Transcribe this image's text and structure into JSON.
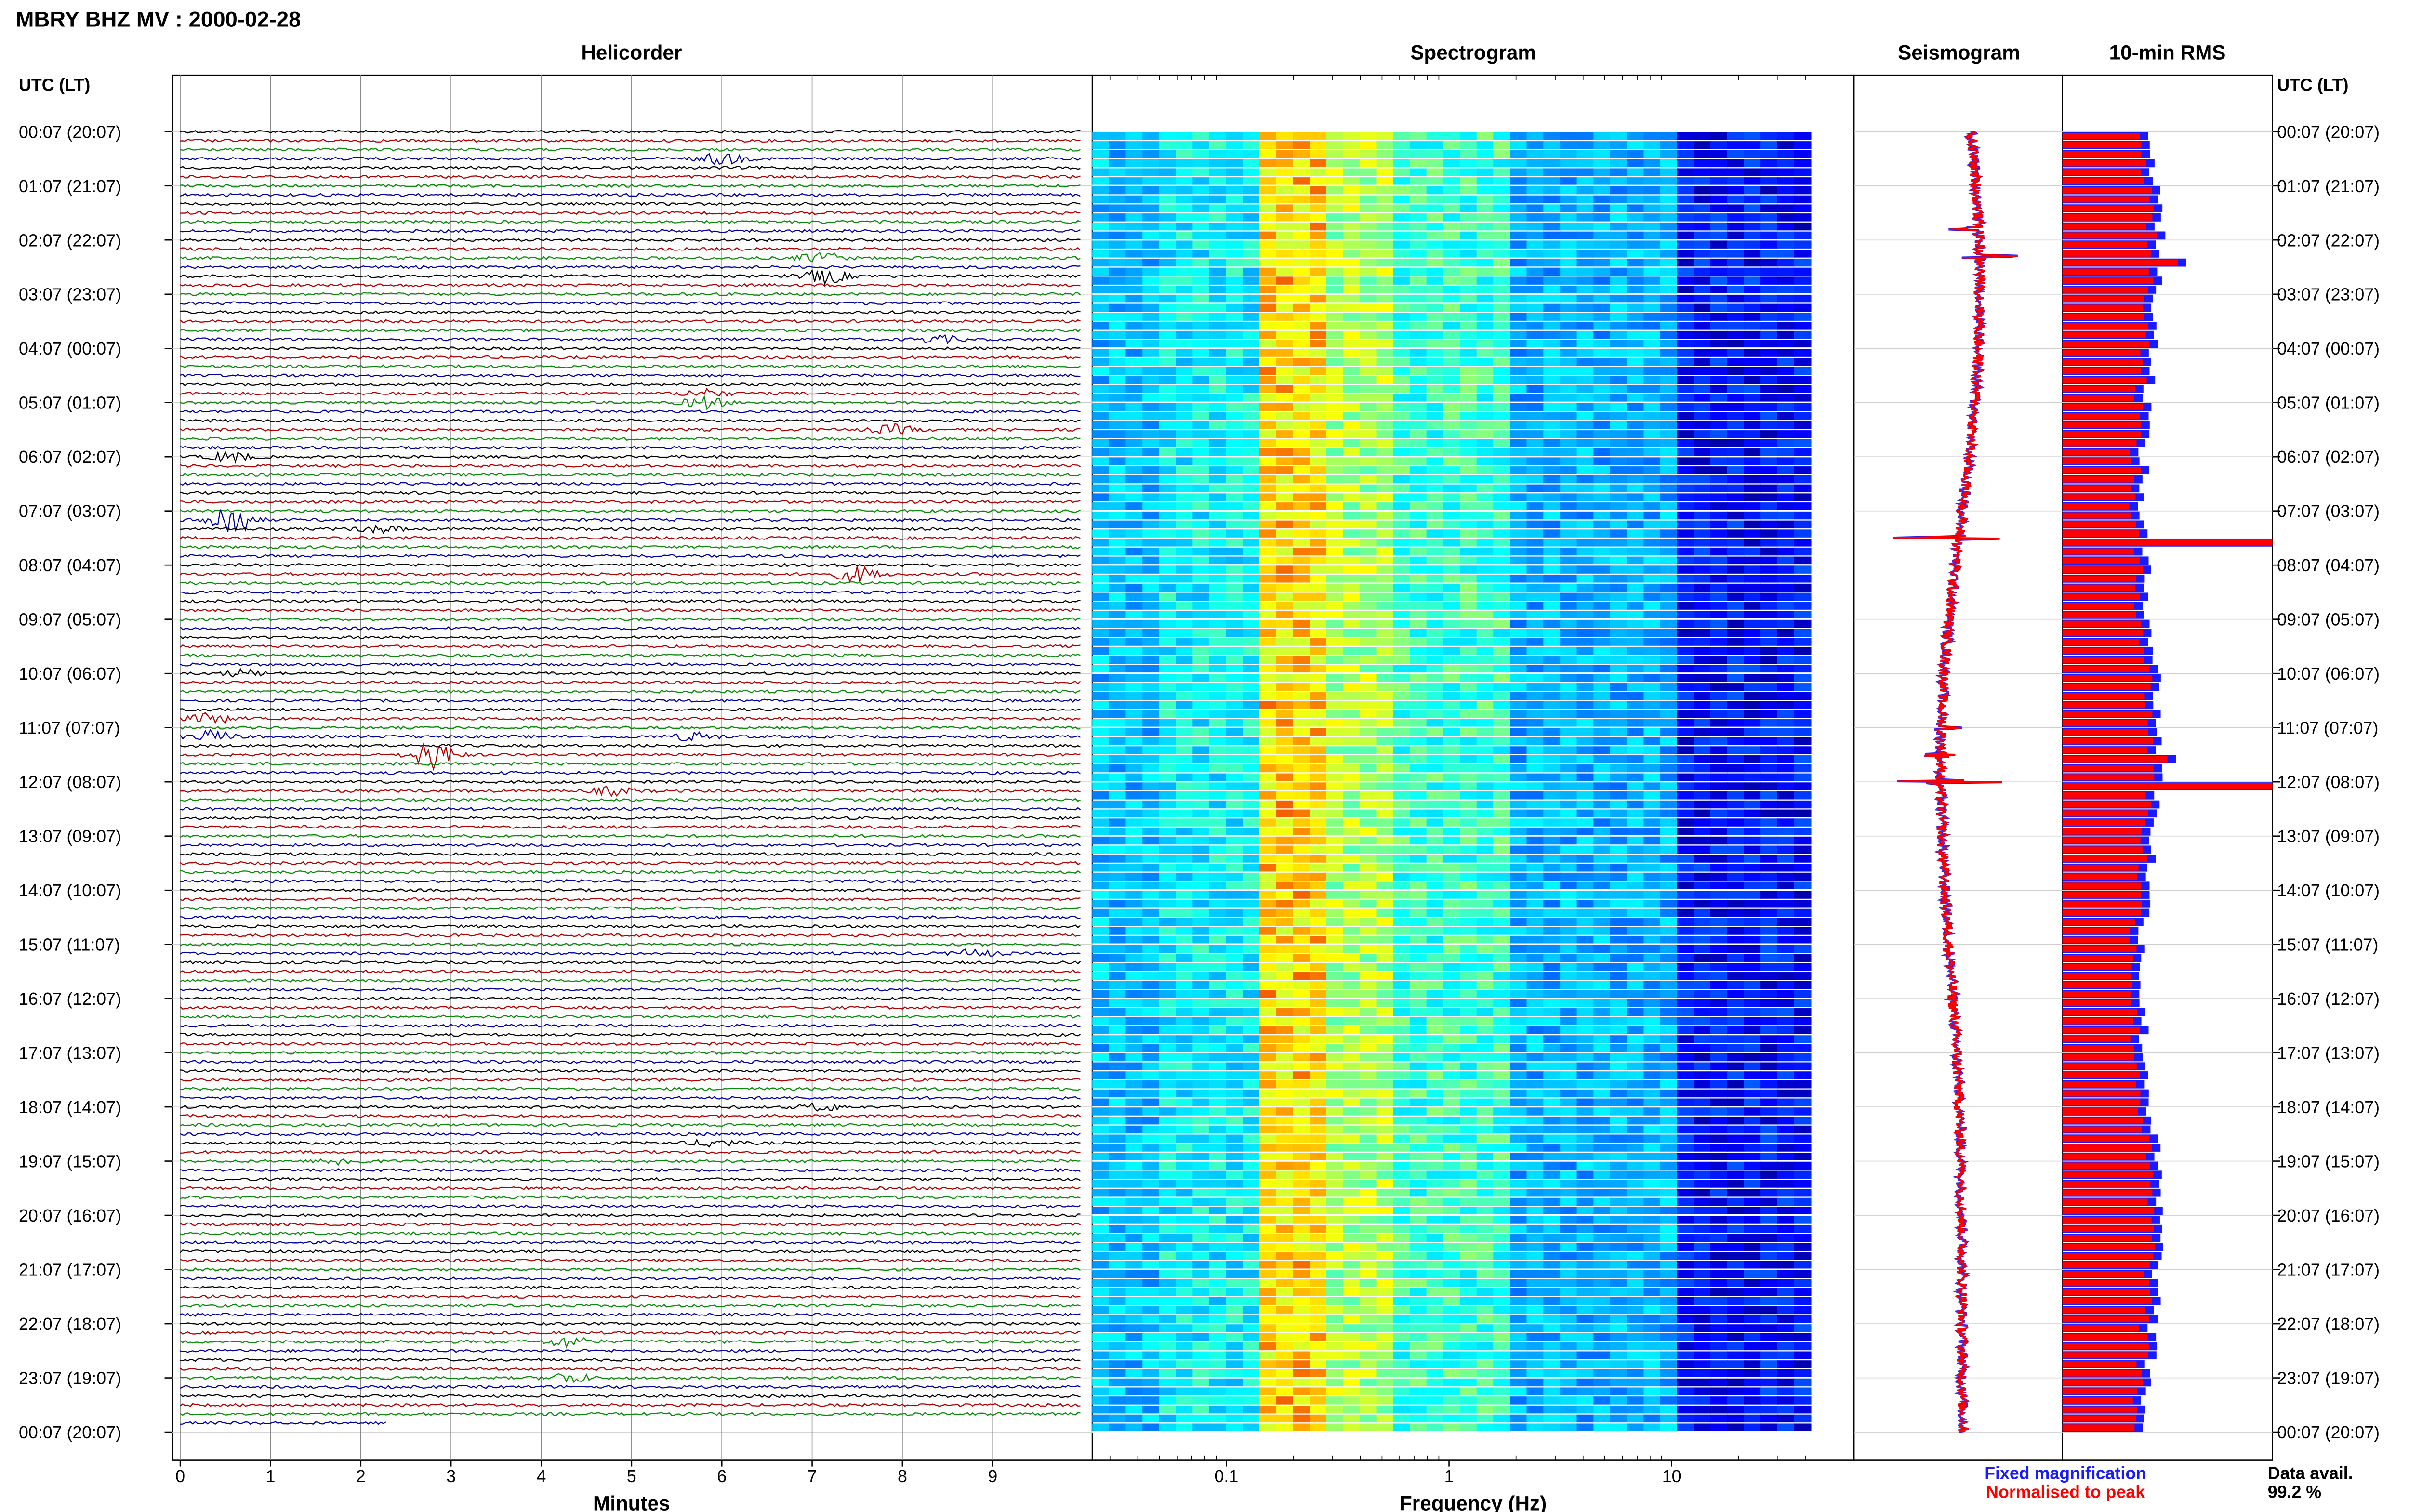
{
  "header": {
    "title": "MBRY BHZ MV : 2000-02-28"
  },
  "panels": {
    "helicorder": "Helicorder",
    "spectrogram": "Spectrogram",
    "seismogram": "Seismogram",
    "rms": "10-min RMS"
  },
  "axes": {
    "left_label": "UTC (LT)",
    "right_label": "UTC (LT)",
    "helicorder_xlabel": "Minutes",
    "spectrogram_xlabel": "Frequency (Hz)"
  },
  "legend": {
    "fixed": "Fixed magnification",
    "fixed_color": "#1a1aff",
    "normalised": "Normalised to peak",
    "normalised_color": "#ff0000"
  },
  "availability": {
    "label": "Data avail.",
    "value": "99.2 %"
  },
  "colors": {
    "trace_cycle": [
      "#000000",
      "#b00000",
      "#0a8a0a",
      "#0000a0"
    ],
    "rms_fixed": "#1a1aff",
    "rms_norm": "#ff0000"
  },
  "chart_data": [
    {
      "type": "line",
      "title": "Helicorder",
      "xlabel": "Minutes",
      "x_ticks": [
        0,
        1,
        2,
        3,
        4,
        5,
        6,
        7,
        8,
        9
      ],
      "xlim": [
        0,
        10
      ],
      "time_labels": [
        "00:07 (20:07)",
        "01:07 (21:07)",
        "02:07 (22:07)",
        "03:07 (23:07)",
        "04:07 (00:07)",
        "05:07 (01:07)",
        "06:07 (02:07)",
        "07:07 (03:07)",
        "08:07 (04:07)",
        "09:07 (05:07)",
        "10:07 (06:07)",
        "11:07 (07:07)",
        "12:07 (08:07)",
        "13:07 (09:07)",
        "14:07 (10:07)",
        "15:07 (11:07)",
        "16:07 (12:07)",
        "17:07 (13:07)",
        "18:07 (14:07)",
        "19:07 (15:07)",
        "20:07 (16:07)",
        "21:07 (17:07)",
        "22:07 (18:07)",
        "23:07 (19:07)",
        "00:07 (20:07)"
      ],
      "traces_per_hour": 6,
      "events": [
        {
          "row": 3,
          "minute": 6.0,
          "amp": 2.2
        },
        {
          "row": 14,
          "minute": 7.1,
          "amp": 2.2
        },
        {
          "row": 16,
          "minute": 7.15,
          "amp": 2.8
        },
        {
          "row": 23,
          "minute": 8.4,
          "amp": 1.4
        },
        {
          "row": 29,
          "minute": 5.8,
          "amp": 1.6
        },
        {
          "row": 30,
          "minute": 5.8,
          "amp": 2.2
        },
        {
          "row": 33,
          "minute": 7.9,
          "amp": 1.8
        },
        {
          "row": 36,
          "minute": 0.55,
          "amp": 2.0
        },
        {
          "row": 43,
          "minute": 0.55,
          "amp": 7.0
        },
        {
          "row": 44,
          "minute": 2.2,
          "amp": 1.3
        },
        {
          "row": 49,
          "minute": 7.5,
          "amp": 3.0
        },
        {
          "row": 60,
          "minute": 0.7,
          "amp": 1.4
        },
        {
          "row": 65,
          "minute": 0.35,
          "amp": 2.0
        },
        {
          "row": 67,
          "minute": 0.35,
          "amp": 2.2
        },
        {
          "row": 67,
          "minute": 5.7,
          "amp": 1.6
        },
        {
          "row": 69,
          "minute": 2.8,
          "amp": 5.5
        },
        {
          "row": 73,
          "minute": 4.8,
          "amp": 1.5
        },
        {
          "row": 91,
          "minute": 8.8,
          "amp": 1.4
        },
        {
          "row": 108,
          "minute": 7.1,
          "amp": 1.4
        },
        {
          "row": 112,
          "minute": 5.9,
          "amp": 1.5
        },
        {
          "row": 114,
          "minute": 1.8,
          "amp": 1.4
        },
        {
          "row": 134,
          "minute": 4.3,
          "amp": 2.0
        },
        {
          "row": 138,
          "minute": 4.3,
          "amp": 2.0
        }
      ]
    },
    {
      "type": "heatmap",
      "title": "Spectrogram",
      "xlabel": "Frequency (Hz)",
      "x_scale": "log",
      "xlim": [
        0.025,
        50
      ],
      "x_ticks": [
        0.1,
        1,
        10
      ],
      "y_rows": 144
    },
    {
      "type": "line",
      "title": "Seismogram"
    },
    {
      "type": "bar",
      "title": "10-min RMS",
      "orientation": "horizontal",
      "series": [
        {
          "name": "Fixed magnification"
        },
        {
          "name": "Normalised to peak"
        }
      ],
      "spikes": [
        {
          "hour": 7.5,
          "value": 1.0
        },
        {
          "hour": 12.0,
          "value": 1.0
        },
        {
          "hour": 2.3,
          "value": 0.55
        },
        {
          "hour": 1.8,
          "value": 0.45
        },
        {
          "hour": 11.0,
          "value": 0.4
        },
        {
          "hour": 11.5,
          "value": 0.5
        }
      ]
    }
  ]
}
